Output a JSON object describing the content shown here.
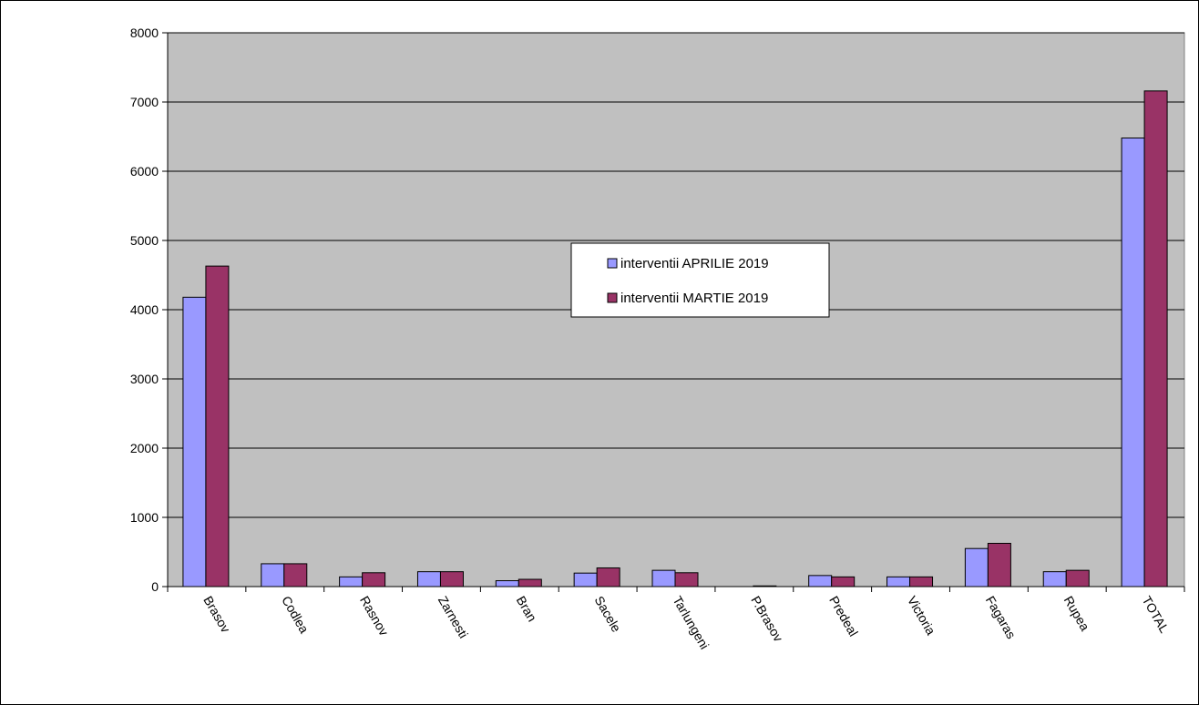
{
  "chart_data": {
    "type": "bar",
    "title": "",
    "xlabel": "",
    "ylabel": "",
    "ylim": [
      0,
      8000
    ],
    "yticks": [
      0,
      1000,
      2000,
      3000,
      4000,
      5000,
      6000,
      7000,
      8000
    ],
    "grid": true,
    "legend_position": "center",
    "categories": [
      "Brasov",
      "Codlea",
      "Rasnov",
      "Zarnesti",
      "Bran",
      "Sacele",
      "Tarlungeni",
      "P.Brasov",
      "Predeal",
      "Victoria",
      "Fagaras",
      "Rupea",
      "TOTAL"
    ],
    "series": [
      {
        "name": "interventii APRILIE 2019",
        "color": "#9999ff",
        "values": [
          4180,
          330,
          140,
          215,
          85,
          195,
          235,
          0,
          160,
          140,
          550,
          215,
          6480
        ]
      },
      {
        "name": "interventii MARTIE 2019",
        "color": "#993366",
        "values": [
          4630,
          330,
          200,
          215,
          105,
          270,
          200,
          10,
          140,
          140,
          625,
          235,
          7160
        ]
      }
    ],
    "plot_background": "#c0c0c0"
  }
}
